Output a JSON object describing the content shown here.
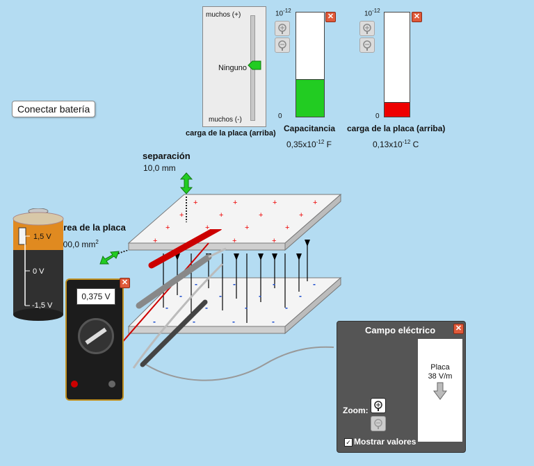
{
  "connect_button": "Conectar batería",
  "charge_slider": {
    "top_label": "muchos (+)",
    "mid_label": "Ninguno",
    "bottom_label": "muchos (-)",
    "caption": "carga de la placa (arriba)"
  },
  "meters": [
    {
      "exponent": "-12",
      "zero": "0",
      "caption": "Capacitancia",
      "value": "0,35x10",
      "value_exp": "-12",
      "unit": "F",
      "fill_fraction": 0.35,
      "color": "#22cc22"
    },
    {
      "exponent": "-12",
      "zero": "0",
      "caption": "carga de la placa (arriba)",
      "value": "0,13x10",
      "value_exp": "-12",
      "unit": "C",
      "fill_fraction": 0.13,
      "color": "#ee0000"
    }
  ],
  "separation": {
    "label": "separación",
    "value": "10,0 mm"
  },
  "plate_area": {
    "label": "área de la placa",
    "value": "400,0 mm",
    "exp": "2"
  },
  "battery": {
    "top": "1,5 V",
    "mid": "0 V",
    "bottom": "-1,5 V"
  },
  "voltmeter": {
    "reading": "0,375 V"
  },
  "field_panel": {
    "title": "Campo eléctrico",
    "zoom_label": "Zoom:",
    "show_values": "Mostrar valores",
    "probe_label": "Placa",
    "probe_value": "38 V/m"
  }
}
